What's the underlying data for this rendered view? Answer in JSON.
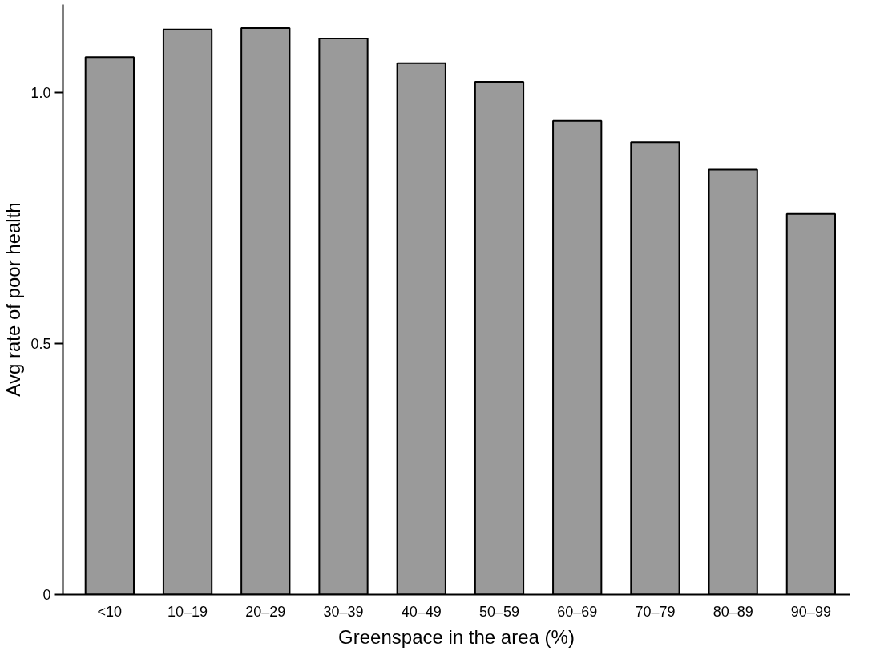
{
  "chart_data": {
    "type": "bar",
    "xlabel": "Greenspace in the area (%)",
    "ylabel": "Avg rate of poor health",
    "categories": [
      "<10",
      "10–19",
      "20–29",
      "30–39",
      "40–49",
      "50–59",
      "60–69",
      "70–79",
      "80–89",
      "90–99"
    ],
    "values": [
      1.07,
      1.125,
      1.128,
      1.107,
      1.058,
      1.021,
      0.943,
      0.901,
      0.846,
      0.758
    ],
    "color": "#9a9a9a",
    "ylim": [
      0,
      1.175
    ],
    "yticks": [
      0,
      0.5,
      {
        "value": 1.0,
        "label": "1.0"
      }
    ],
    "grid": false
  }
}
